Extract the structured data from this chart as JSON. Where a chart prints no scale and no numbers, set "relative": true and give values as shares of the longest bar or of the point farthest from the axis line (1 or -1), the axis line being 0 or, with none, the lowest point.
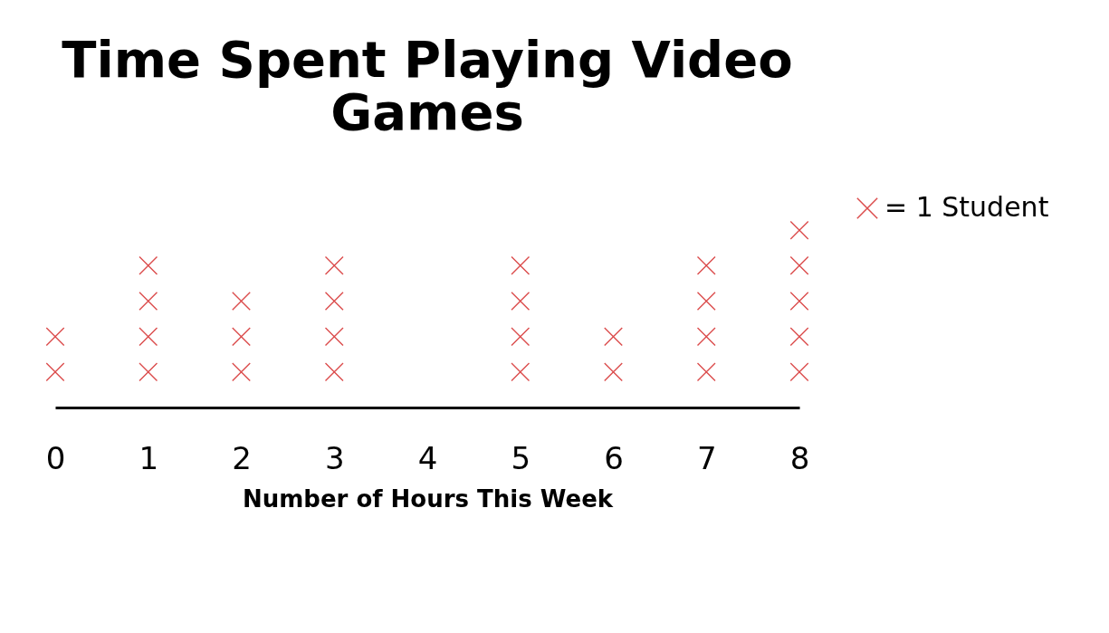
{
  "chart_data": {
    "type": "scatter",
    "title": "Time Spent Playing Video Games",
    "xlabel": "Number of Hours This Week",
    "relative": true,
    "series": [
      {
        "name": "= 1 Student",
        "color": "#cc0000",
        "x": [
          0,
          0,
          1,
          1,
          1,
          1,
          2,
          2,
          2,
          3,
          3,
          3,
          3,
          5,
          5,
          5,
          5,
          6,
          6,
          7,
          7,
          7,
          7,
          8,
          8,
          8,
          8,
          8
        ],
        "values": [
          0.2,
          0.4,
          0.2,
          0.4,
          0.6,
          0.8,
          0.2,
          0.4,
          0.6,
          0.2,
          0.4,
          0.6,
          0.8,
          0.2,
          0.4,
          0.6,
          0.8,
          0.2,
          0.4,
          0.2,
          0.4,
          0.6,
          0.8,
          0.2,
          0.4,
          0.6,
          0.8,
          1
        ]
      }
    ],
    "xlim": [
      0,
      8
    ],
    "xticks": [
      0,
      1,
      2,
      3,
      4,
      5,
      6,
      7,
      8
    ],
    "marker": "cross",
    "legend": "right",
    "grid": false
  }
}
